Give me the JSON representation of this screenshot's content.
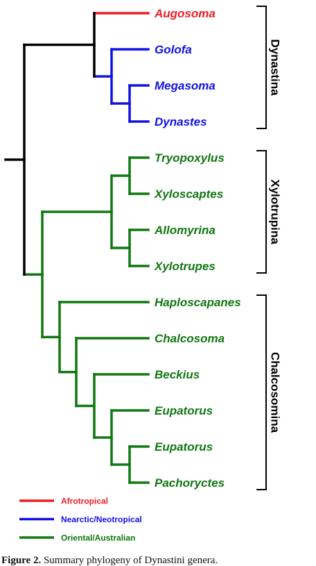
{
  "colors": {
    "backbone": "#000000",
    "afrotropical": "#ee1c24",
    "neotropical": "#1010e6",
    "oriental": "#117711"
  },
  "taxa": [
    {
      "label": "Augosoma",
      "region": "afrotropical"
    },
    {
      "label": "Golofa",
      "region": "neotropical"
    },
    {
      "label": "Megasoma",
      "region": "neotropical"
    },
    {
      "label": "Dynastes",
      "region": "neotropical"
    },
    {
      "label": "Tryopoxylus",
      "region": "oriental"
    },
    {
      "label": "Xyloscaptes",
      "region": "oriental"
    },
    {
      "label": "Allomyrina",
      "region": "oriental"
    },
    {
      "label": "Xylotrupes",
      "region": "oriental"
    },
    {
      "label": "Haploscapanes",
      "region": "oriental"
    },
    {
      "label": "Chalcosoma",
      "region": "oriental"
    },
    {
      "label": "Beckius",
      "region": "oriental"
    },
    {
      "label": "Eupatorus",
      "region": "oriental"
    },
    {
      "label": "Eupatorus",
      "region": "oriental"
    },
    {
      "label": "Pachoryctes",
      "region": "oriental"
    }
  ],
  "clades": [
    {
      "label": "Dynastina",
      "first": 0,
      "last": 3
    },
    {
      "label": "Xylotrupina",
      "first": 4,
      "last": 7
    },
    {
      "label": "Chalcosomina",
      "first": 8,
      "last": 13
    }
  ],
  "legend": [
    {
      "label": "Afrotropical",
      "region": "afrotropical"
    },
    {
      "label": "Nearctic/Neotropical",
      "region": "neotropical"
    },
    {
      "label": "Oriental/Australian",
      "region": "oriental"
    }
  ],
  "caption": {
    "label": "Figure 2.",
    "text": "Summary phylogeny of Dynastini genera."
  }
}
